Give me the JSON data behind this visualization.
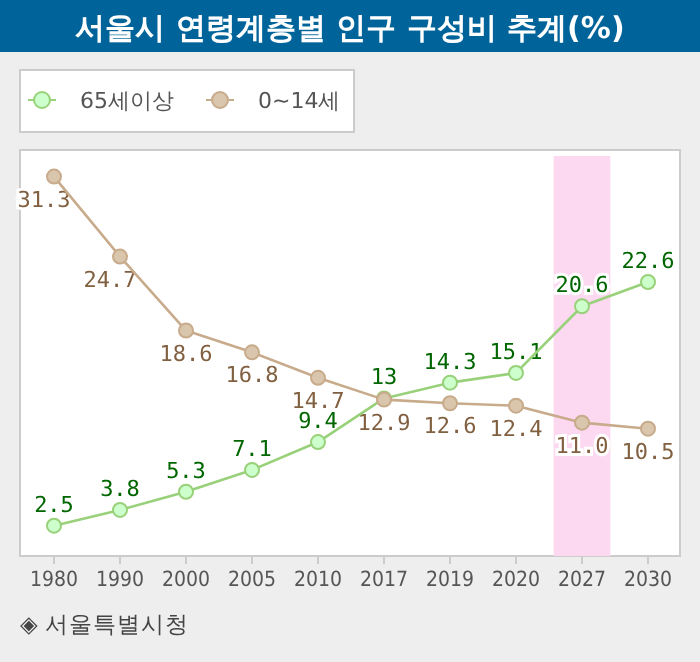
{
  "chart_data": {
    "type": "line",
    "title": "서울시 연령계층별 인구 구성비 추계(%)",
    "categories": [
      "1980",
      "1990",
      "2000",
      "2005",
      "2010",
      "2017",
      "2019",
      "2020",
      "2027",
      "2030"
    ],
    "series": [
      {
        "name": "65세이상",
        "color": "#99d17a",
        "values": [
          2.5,
          3.8,
          5.3,
          7.1,
          9.4,
          13,
          14.3,
          15.1,
          20.6,
          22.6
        ],
        "value_labels": [
          "2.5",
          "3.8",
          "5.3",
          "7.1",
          "9.4",
          "13",
          "14.3",
          "15.1",
          "20.6",
          "22.6"
        ]
      },
      {
        "name": "0~14세",
        "color": "#c8ab8b",
        "values": [
          31.3,
          24.7,
          18.6,
          16.8,
          14.7,
          12.9,
          12.6,
          12.4,
          11.0,
          10.5
        ],
        "value_labels": [
          "31.3",
          "24.7",
          "18.6",
          "16.8",
          "14.7",
          "12.9",
          "12.6",
          "12.4",
          "11.0",
          "10.5"
        ]
      }
    ],
    "bands": [
      {
        "axis": "x",
        "from": "2027",
        "to": "2027",
        "color": "#fcd9f0"
      }
    ],
    "annotations": [
      "◈ 서울특별시청"
    ],
    "legend": "top left",
    "marker": "circle",
    "line_style": "solid"
  }
}
